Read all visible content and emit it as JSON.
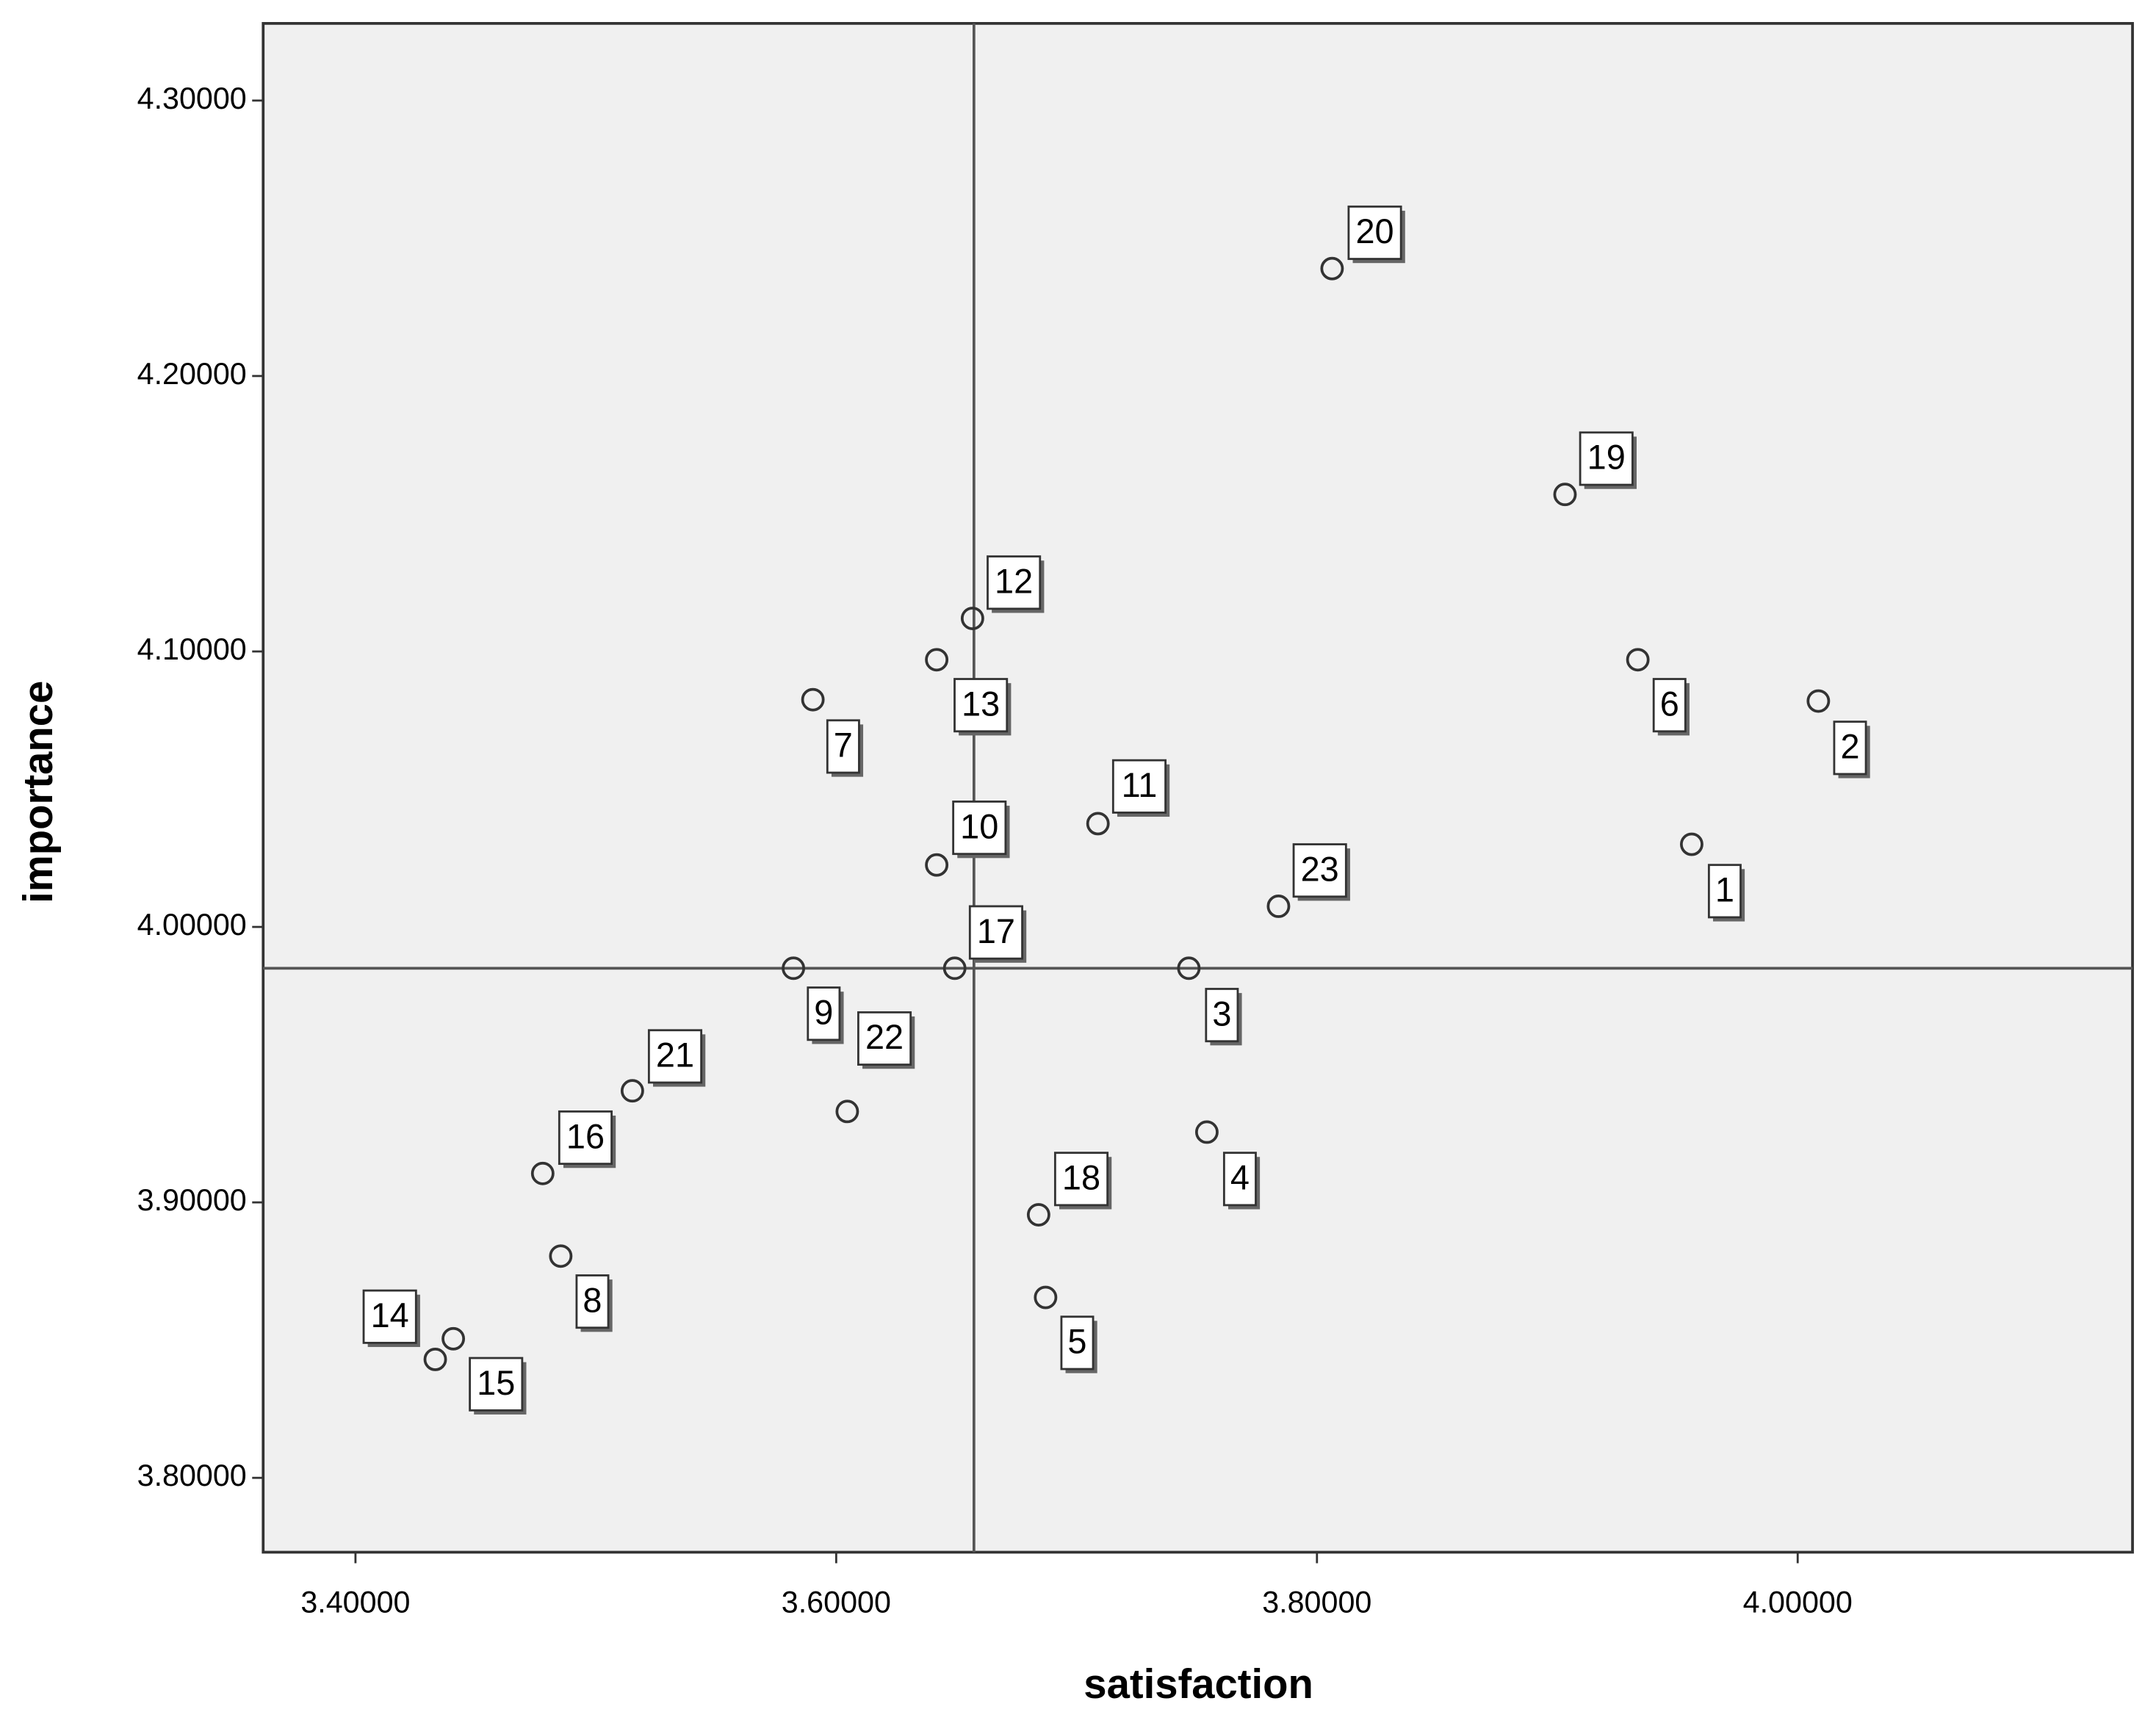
{
  "chart_data": {
    "type": "scatter",
    "x_label": "satisfaction",
    "y_label": "importance",
    "xlim": [
      3.3616,
      4.1393
    ],
    "ylim": [
      3.773,
      4.328
    ],
    "xticks": [
      {
        "value": 3.4,
        "label": "3.40000"
      },
      {
        "value": 3.6,
        "label": "3.60000"
      },
      {
        "value": 3.8,
        "label": "3.80000"
      },
      {
        "value": 4.0,
        "label": "4.00000"
      }
    ],
    "yticks": [
      {
        "value": 3.8,
        "label": "3.80000"
      },
      {
        "value": 3.9,
        "label": "3.90000"
      },
      {
        "value": 4.0,
        "label": "4.00000"
      },
      {
        "value": 4.1,
        "label": "4.10000"
      },
      {
        "value": 4.2,
        "label": "4.20000"
      },
      {
        "value": 4.3,
        "label": "4.30000"
      }
    ],
    "reference_lines": {
      "x": 3.6573,
      "y": 3.985
    },
    "plot_background": "#f0f0f0",
    "marker_color": "#333333",
    "labels": [
      "1",
      "2",
      "3",
      "4",
      "5",
      "6",
      "7",
      "8",
      "9",
      "10",
      "11",
      "12",
      "13",
      "14",
      "15",
      "16",
      "17",
      "18",
      "19",
      "20",
      "21",
      "22",
      "23"
    ],
    "x": [
      3.9559,
      4.0086,
      3.7467,
      3.7542,
      3.6871,
      3.9335,
      3.5903,
      3.4854,
      3.5822,
      3.6418,
      3.7089,
      3.6567,
      3.6418,
      3.4332,
      3.4407,
      3.4779,
      3.6493,
      3.6842,
      3.9032,
      3.8063,
      3.5152,
      3.6046,
      3.784
    ],
    "y": [
      4.03,
      4.082,
      3.985,
      3.9255,
      3.8655,
      4.097,
      4.0825,
      3.8805,
      3.985,
      4.0225,
      4.0375,
      4.112,
      4.097,
      3.843,
      3.8505,
      3.9105,
      3.985,
      3.8955,
      4.157,
      4.239,
      3.9405,
      3.933,
      4.0075
    ]
  }
}
